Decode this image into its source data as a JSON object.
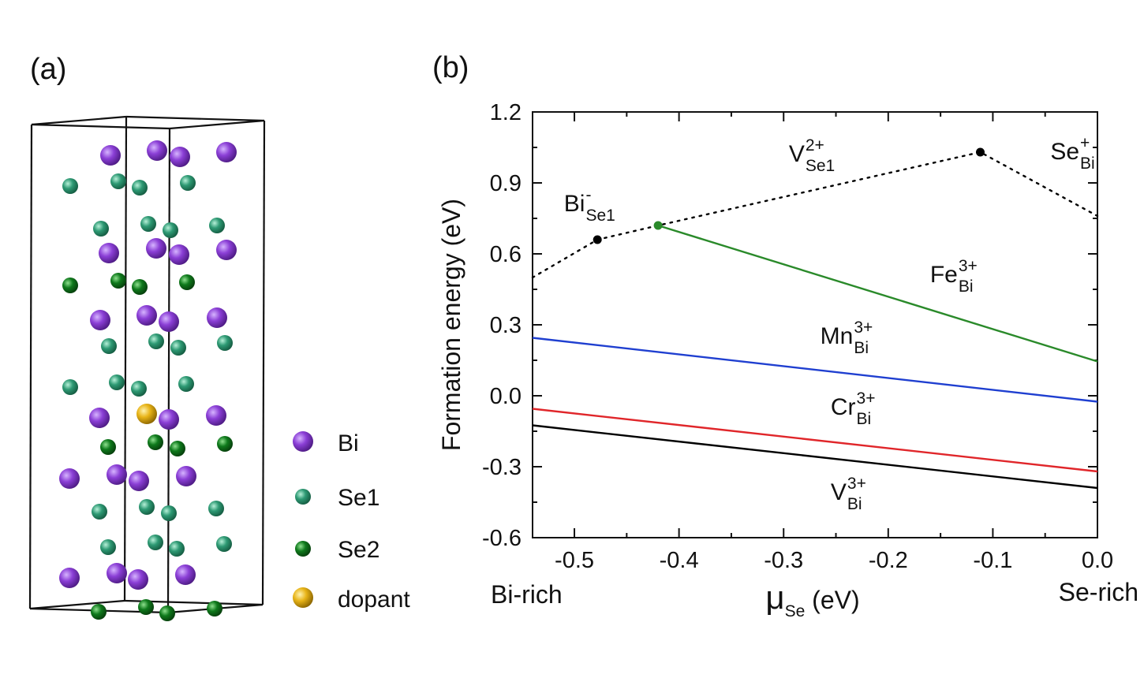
{
  "panel_a": {
    "label": "(a)",
    "legend": [
      {
        "key": "bi",
        "label": "Bi",
        "color": "#8b3fd6",
        "size": "large"
      },
      {
        "key": "se1",
        "label": "Se1",
        "color": "#2e9a74",
        "size": "medium"
      },
      {
        "key": "se2",
        "label": "Se2",
        "color": "#0f7a1c",
        "size": "medium"
      },
      {
        "key": "dopant",
        "label": "dopant",
        "color": "#e8b418",
        "size": "large"
      }
    ]
  },
  "panel_b": {
    "label": "(b)"
  },
  "chart_data": {
    "type": "line",
    "xlabel": "μ",
    "xlabel_sub": "Se",
    "xlabel_unit": " (eV)",
    "ylabel": "Formation energy (eV)",
    "xlim": [
      -0.54,
      0.0
    ],
    "ylim": [
      -0.6,
      1.2
    ],
    "xticks": [
      -0.5,
      -0.4,
      -0.3,
      -0.2,
      -0.1,
      0.0
    ],
    "xtick_labels": [
      "-0.5",
      "-0.4",
      "-0.3",
      "-0.2",
      "-0.1",
      "0.0"
    ],
    "yticks": [
      -0.6,
      -0.3,
      0.0,
      0.3,
      0.6,
      0.9,
      1.2
    ],
    "ytick_labels": [
      "-0.6",
      "-0.3",
      "0.0",
      "0.3",
      "0.6",
      "0.9",
      "1.2"
    ],
    "x_end_labels": {
      "left": "Bi-rich",
      "right": "Se-rich"
    },
    "series": [
      {
        "key": "native",
        "style": "dotted",
        "color": "#000000",
        "x": [
          -0.54,
          -0.478,
          -0.42,
          -0.112,
          0.0
        ],
        "y": [
          0.5,
          0.66,
          0.72,
          1.03,
          0.76
        ],
        "markers": [
          {
            "x": -0.478,
            "y": 0.66,
            "color": "#000000"
          },
          {
            "x": -0.42,
            "y": 0.72,
            "color": "#2a8a2a"
          },
          {
            "x": -0.112,
            "y": 1.03,
            "color": "#000000"
          }
        ]
      },
      {
        "key": "fe",
        "style": "solid",
        "color": "#2a8a2a",
        "x": [
          -0.42,
          0.0
        ],
        "y": [
          0.72,
          0.145
        ]
      },
      {
        "key": "mn",
        "style": "solid",
        "color": "#1f3fd0",
        "x": [
          -0.54,
          0.0
        ],
        "y": [
          0.245,
          -0.025
        ]
      },
      {
        "key": "cr",
        "style": "solid",
        "color": "#e0262a",
        "x": [
          -0.54,
          0.0
        ],
        "y": [
          -0.055,
          -0.32
        ]
      },
      {
        "key": "v",
        "style": "solid",
        "color": "#000000",
        "x": [
          -0.54,
          0.0
        ],
        "y": [
          -0.125,
          -0.39
        ]
      }
    ],
    "annotations": [
      {
        "key": "bi_se1",
        "base": "Bi",
        "sup": "-",
        "sub": "Se1",
        "x": -0.51,
        "y": 0.78
      },
      {
        "key": "v_se1",
        "base": "V",
        "sup": "2+",
        "sub": "Se1",
        "x": -0.295,
        "y": 0.99
      },
      {
        "key": "se_bi",
        "base": "Se",
        "sup": "+",
        "sub": "Bi",
        "x": -0.045,
        "y": 1.0
      },
      {
        "key": "fe_bi",
        "base": "Fe",
        "sup": "3+",
        "sub": "Bi",
        "x": -0.16,
        "y": 0.48
      },
      {
        "key": "mn_bi",
        "base": "Mn",
        "sup": "3+",
        "sub": "Bi",
        "x": -0.265,
        "y": 0.22
      },
      {
        "key": "cr_bi",
        "base": "Cr",
        "sup": "3+",
        "sub": "Bi",
        "x": -0.255,
        "y": -0.08
      },
      {
        "key": "v_bi",
        "base": "V",
        "sup": "3+",
        "sub": "Bi",
        "x": -0.255,
        "y": -0.44
      }
    ]
  }
}
